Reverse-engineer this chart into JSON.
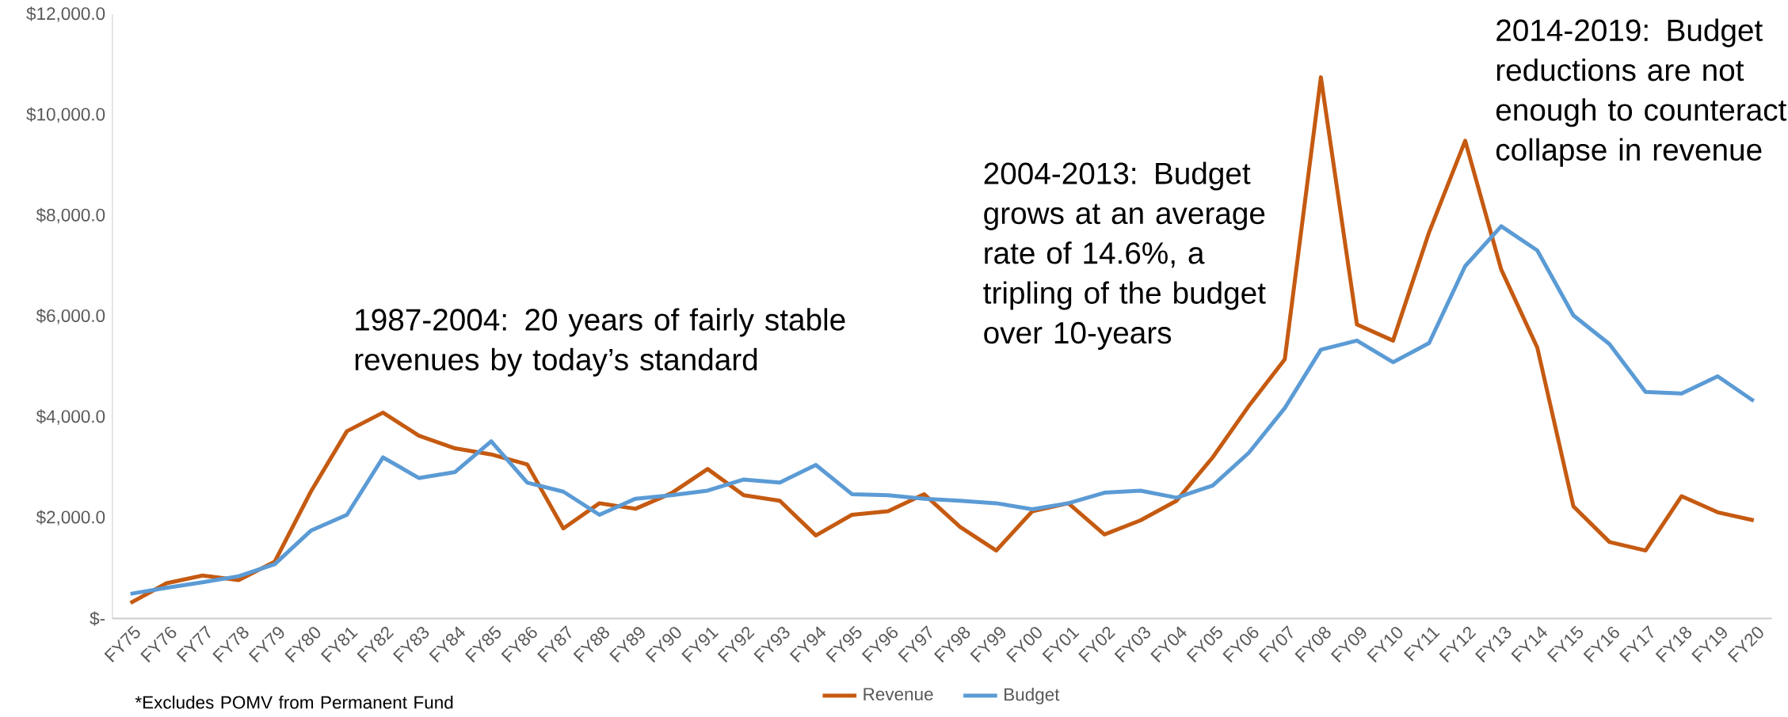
{
  "chart_data": {
    "type": "line",
    "categories": [
      "FY75",
      "FY76",
      "FY77",
      "FY78",
      "FY79",
      "FY80",
      "FY81",
      "FY82",
      "FY83",
      "FY84",
      "FY85",
      "FY86",
      "FY87",
      "FY88",
      "FY89",
      "FY90",
      "FY91",
      "FY92",
      "FY93",
      "FY94",
      "FY95",
      "FY96",
      "FY97",
      "FY98",
      "FY99",
      "FY00",
      "FY01",
      "FY02",
      "FY03",
      "FY04",
      "FY05",
      "FY06",
      "FY07",
      "FY08",
      "FY09",
      "FY10",
      "FY11",
      "FY12",
      "FY13",
      "FY14",
      "FY15",
      "FY16",
      "FY17",
      "FY18",
      "FY19",
      "FY20"
    ],
    "series": [
      {
        "name": "Revenue",
        "color": "#c55a11",
        "values": [
          310,
          700,
          855,
          765,
          1130,
          2520,
          3720,
          4090,
          3630,
          3380,
          3260,
          3060,
          1790,
          2290,
          2180,
          2490,
          2970,
          2450,
          2340,
          1650,
          2060,
          2130,
          2470,
          1820,
          1350,
          2130,
          2290,
          1670,
          1950,
          2340,
          3200,
          4220,
          5150,
          10750,
          5840,
          5520,
          7670,
          9490,
          6930,
          5380,
          2230,
          1520,
          1350,
          2430,
          2110,
          1950
        ]
      },
      {
        "name": "Budget",
        "color": "#5b9bd5",
        "values": [
          490,
          610,
          720,
          840,
          1080,
          1745,
          2060,
          3200,
          2790,
          2910,
          3520,
          2700,
          2520,
          2060,
          2380,
          2450,
          2540,
          2760,
          2700,
          3050,
          2470,
          2450,
          2380,
          2340,
          2290,
          2170,
          2290,
          2500,
          2540,
          2400,
          2640,
          3290,
          4180,
          5340,
          5520,
          5090,
          5470,
          7000,
          7790,
          7310,
          6020,
          5450,
          4500,
          4470,
          4810,
          4320
        ]
      }
    ],
    "ylim": [
      0,
      12000
    ],
    "yticks": [
      {
        "value": 0,
        "label": "$-"
      },
      {
        "value": 2000,
        "label": "$2,000.0"
      },
      {
        "value": 4000,
        "label": "$4,000.0"
      },
      {
        "value": 6000,
        "label": "$6,000.0"
      },
      {
        "value": 8000,
        "label": "$8,000.0"
      },
      {
        "value": 10000,
        "label": "$10,000.0"
      },
      {
        "value": 12000,
        "label": "$12,000.0"
      }
    ],
    "grid": false,
    "legend": "bottom",
    "marker": "none",
    "line_style": "solid",
    "annotations": [
      "1987-2004: 20 years of fairly stable revenues by today’s standard",
      "2004-2013: Budget grows at an average rate of 14.6%, a tripling of the budget over 10-years",
      "2014-2019: Budget reductions are not enough to counteract collapse in revenue",
      "*Excludes POMV from Permanent Fund"
    ]
  }
}
